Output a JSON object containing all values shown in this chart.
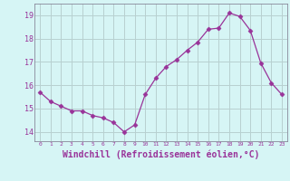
{
  "x": [
    0,
    1,
    2,
    3,
    4,
    5,
    6,
    7,
    8,
    9,
    10,
    11,
    12,
    13,
    14,
    15,
    16,
    17,
    18,
    19,
    20,
    21,
    22,
    23
  ],
  "y": [
    15.7,
    15.3,
    15.1,
    14.9,
    14.9,
    14.7,
    14.6,
    14.4,
    14.0,
    14.3,
    15.6,
    16.3,
    16.8,
    17.1,
    17.5,
    17.85,
    18.4,
    18.45,
    19.1,
    18.95,
    18.35,
    16.95,
    16.1,
    15.6
  ],
  "line_color": "#993399",
  "marker": "D",
  "marker_size": 2.5,
  "xlabel": "Windchill (Refroidissement éolien,°C)",
  "xlabel_fontsize": 7,
  "yticks": [
    14,
    15,
    16,
    17,
    18,
    19
  ],
  "xticks": [
    0,
    1,
    2,
    3,
    4,
    5,
    6,
    7,
    8,
    9,
    10,
    11,
    12,
    13,
    14,
    15,
    16,
    17,
    18,
    19,
    20,
    21,
    22,
    23
  ],
  "ylim": [
    13.6,
    19.5
  ],
  "xlim": [
    -0.5,
    23.5
  ],
  "bg_color": "#d6f5f5",
  "grid_color": "#b8d0d0",
  "tick_color": "#993399",
  "spine_color": "#888899"
}
